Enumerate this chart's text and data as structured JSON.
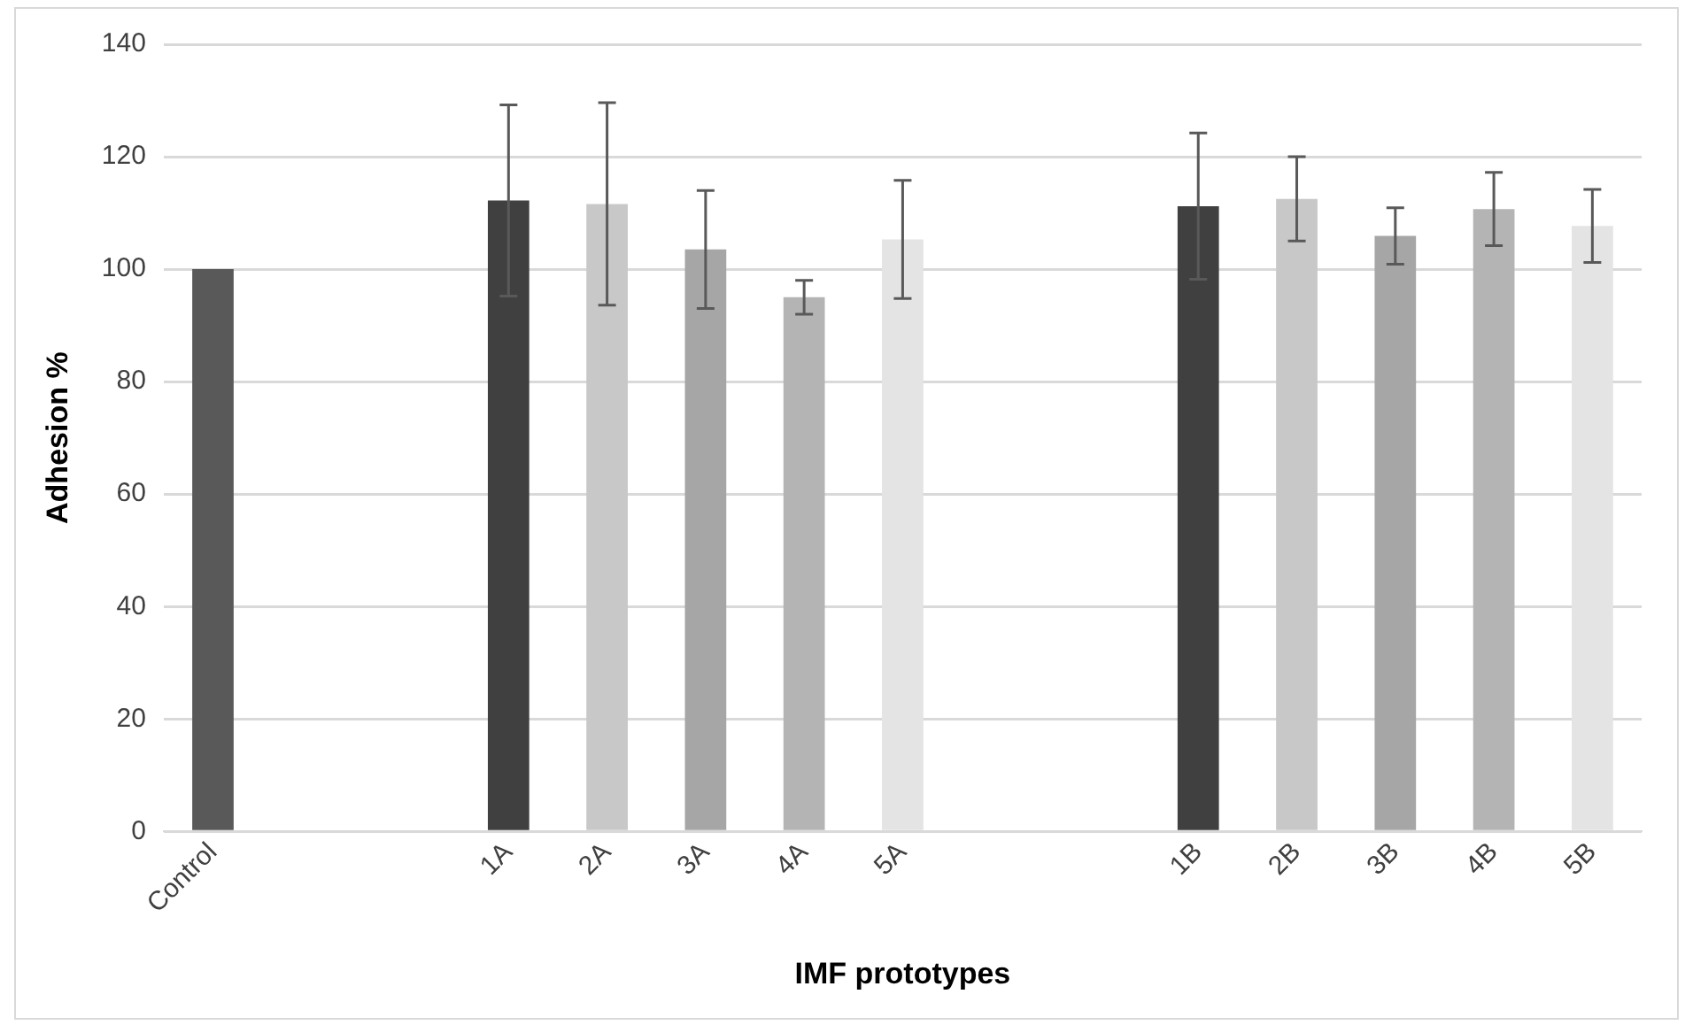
{
  "chart_data": {
    "type": "bar",
    "xlabel": "IMF prototypes",
    "ylabel": "Adhesion %",
    "categories": [
      "Control",
      null,
      null,
      "1A",
      "2A",
      "3A",
      "4A",
      "5A",
      null,
      null,
      "1B",
      "2B",
      "3B",
      "4B",
      "5B"
    ],
    "values": [
      100,
      null,
      null,
      112.2,
      111.6,
      103.5,
      95,
      105.3,
      null,
      null,
      111.2,
      112.5,
      105.9,
      110.7,
      107.7
    ],
    "errors": [
      null,
      null,
      null,
      17,
      18,
      10.5,
      3,
      10.5,
      null,
      null,
      13,
      7.5,
      5,
      6.5,
      6.5
    ],
    "colors": [
      "#595959",
      null,
      null,
      "#404040",
      "#c8c8c8",
      "#a6a6a6",
      "#b4b4b4",
      "#e4e4e4",
      null,
      null,
      "#404040",
      "#c8c8c8",
      "#a6a6a6",
      "#b4b4b4",
      "#e4e4e4"
    ],
    "ylim": [
      0,
      140
    ],
    "yticks": [
      0,
      20,
      40,
      60,
      80,
      100,
      120,
      140
    ],
    "grid": "y",
    "legend": false
  }
}
